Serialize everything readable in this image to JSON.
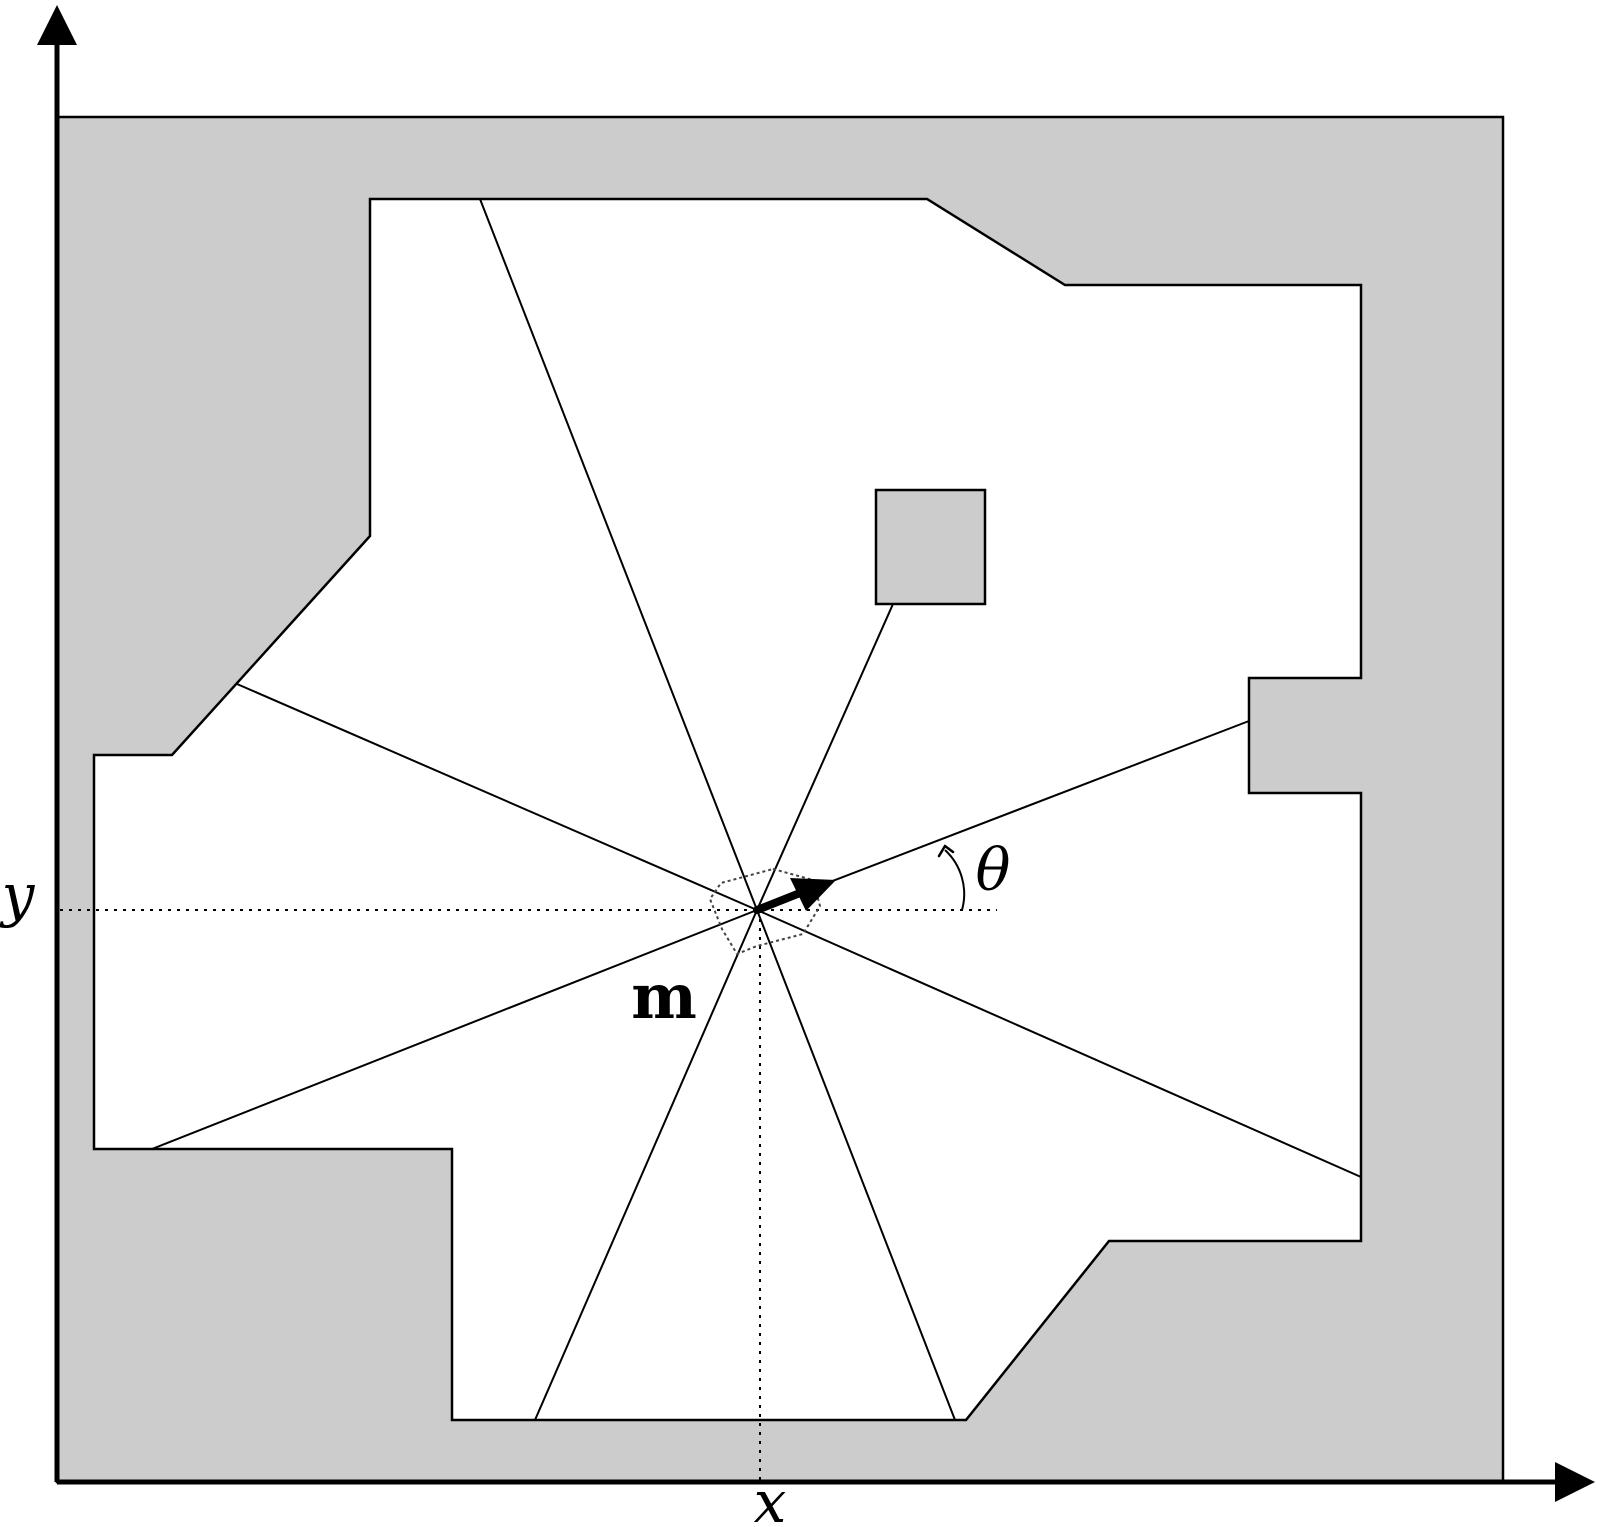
{
  "labels": {
    "x_axis": "x",
    "y_axis": "y",
    "angle": "θ",
    "map": "m"
  },
  "colors": {
    "obstacle_fill": "#cccccc",
    "free_space": "#ffffff",
    "stroke": "#000000"
  }
}
